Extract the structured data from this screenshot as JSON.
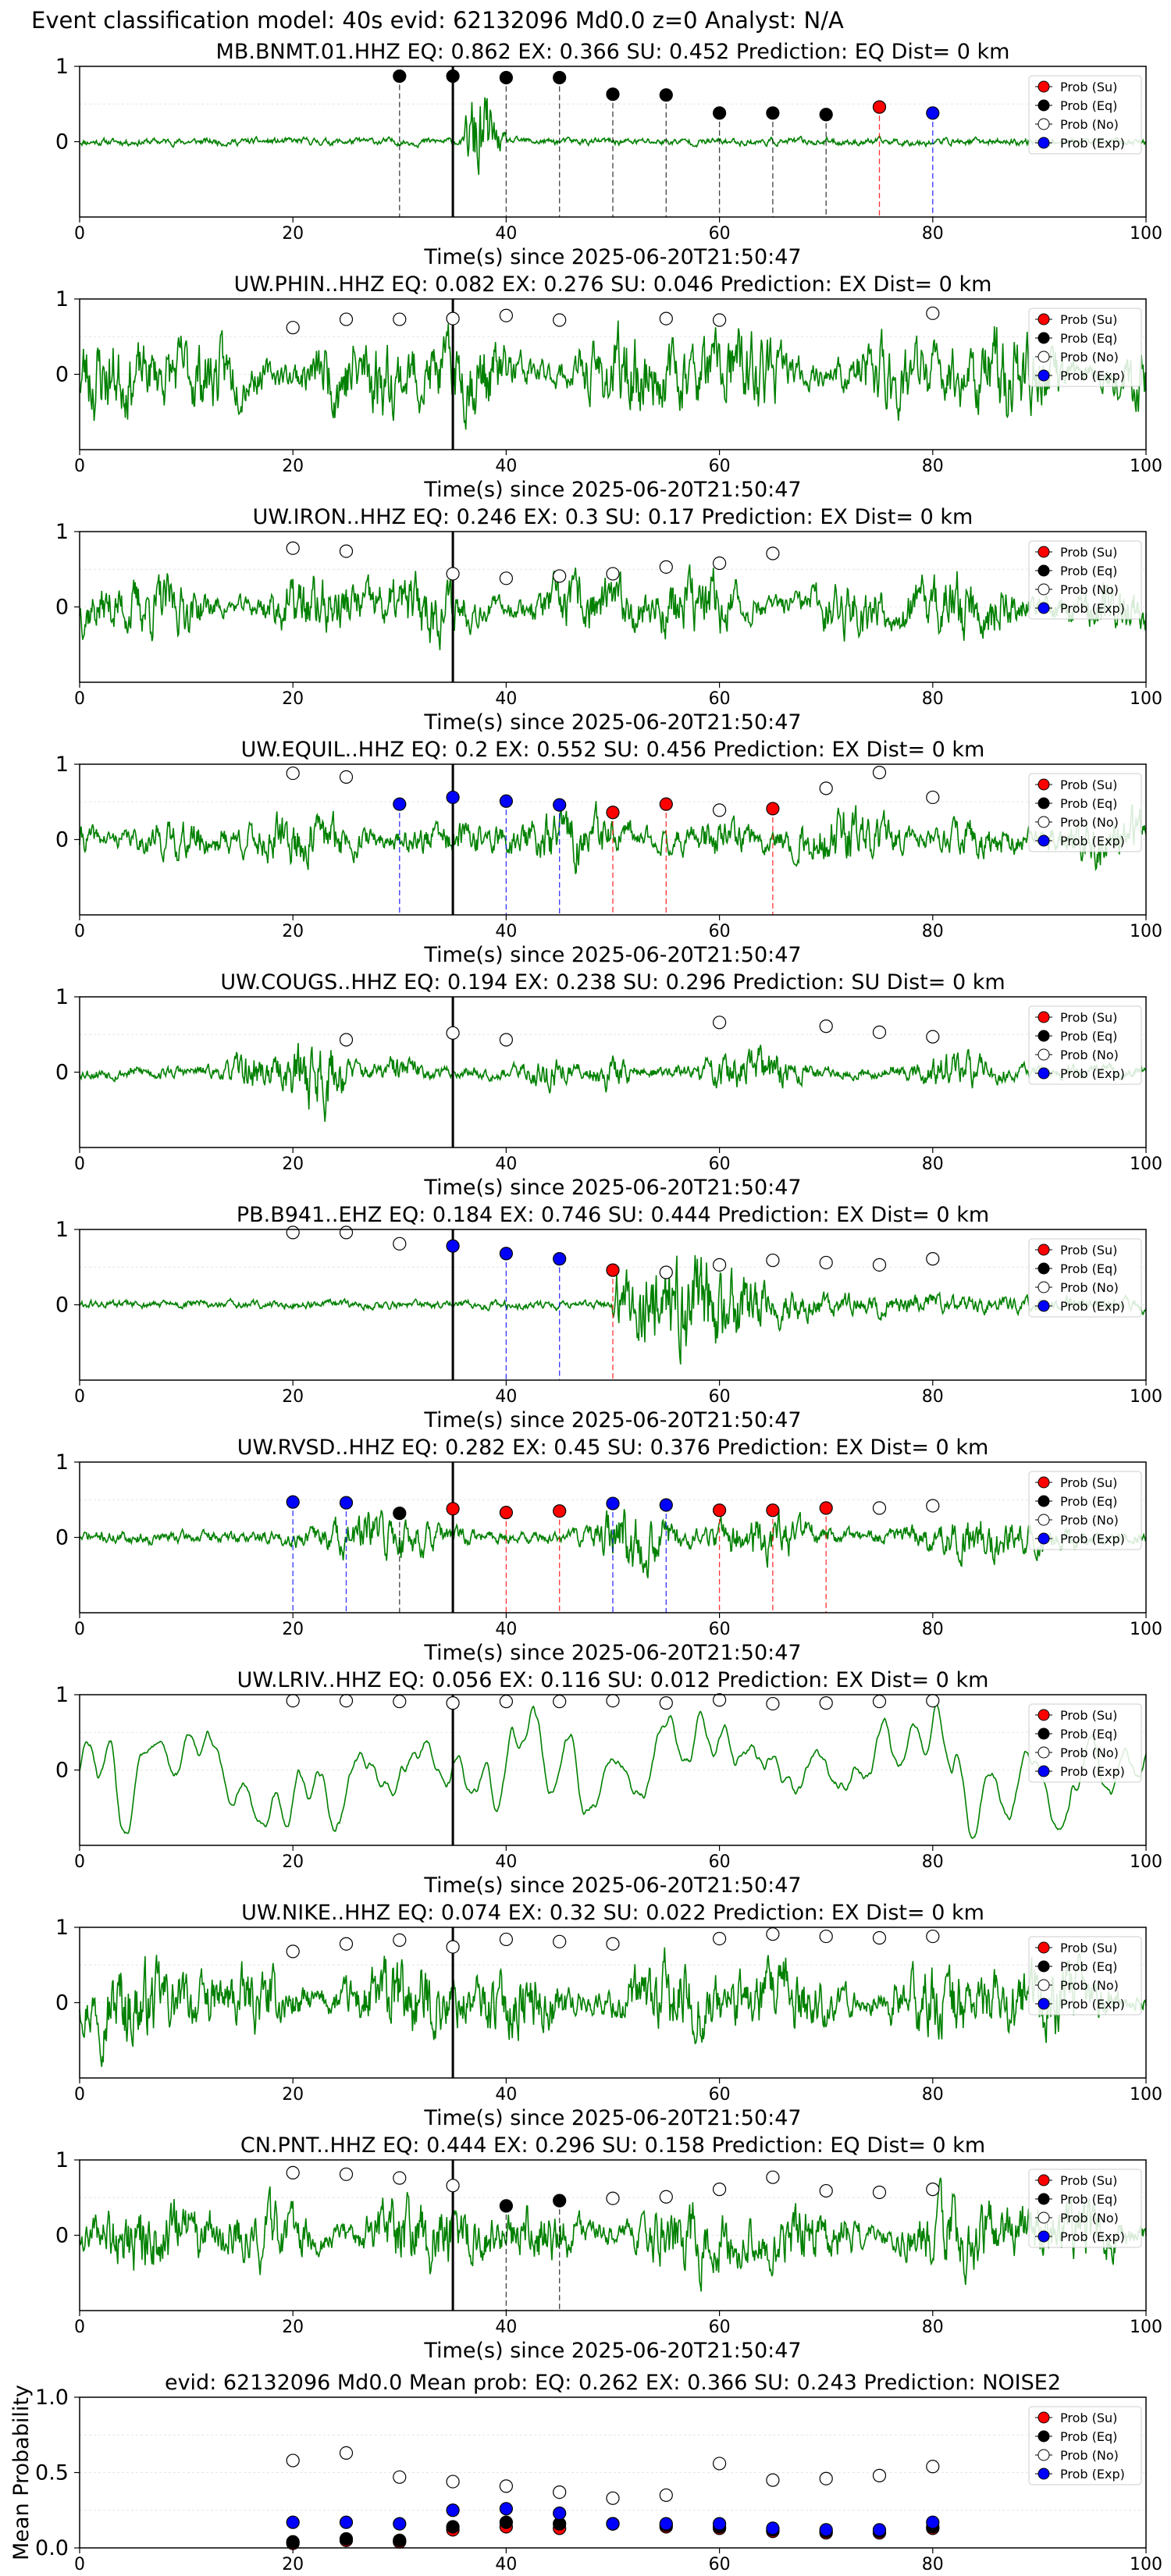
{
  "figure": {
    "suptitle": "Event classification model: 40s evid: 62132096 Md0.0 z=0 Analyst: N/A"
  },
  "legend": {
    "entries": [
      {
        "label": "Prob (Su)",
        "color": "#ff0000"
      },
      {
        "label": "Prob (Eq)",
        "color": "#000000"
      },
      {
        "label": "Prob (No)",
        "color": "#ffffff"
      },
      {
        "label": "Prob (Exp)",
        "color": "#0000ff"
      }
    ]
  },
  "chart_data": [
    {
      "type": "scatter",
      "title": "MB.BNMT.01.HHZ   EQ: 0.862  EX: 0.366  SU: 0.452   Prediction: EQ    Dist= 0 km",
      "xlabel": "Time(s) since 2025-06-20T21:50:47",
      "xlim": [
        0,
        100
      ],
      "ylim": [
        -1,
        1
      ],
      "xticks": [
        "0",
        "20",
        "40",
        "60",
        "80",
        "100"
      ],
      "yticks": [
        "0",
        "1"
      ],
      "waveform": {
        "color": "#008000",
        "amp": 0.07,
        "style": "quiet_burst",
        "seed": 11
      },
      "event_marker_x": 35,
      "points": [
        {
          "t": 30,
          "p": 0.87,
          "class": "Eq"
        },
        {
          "t": 35,
          "p": 0.87,
          "class": "Eq"
        },
        {
          "t": 40,
          "p": 0.85,
          "class": "Eq"
        },
        {
          "t": 45,
          "p": 0.85,
          "class": "Eq"
        },
        {
          "t": 50,
          "p": 0.63,
          "class": "Eq"
        },
        {
          "t": 55,
          "p": 0.62,
          "class": "Eq"
        },
        {
          "t": 60,
          "p": 0.38,
          "class": "Eq"
        },
        {
          "t": 65,
          "p": 0.38,
          "class": "Eq"
        },
        {
          "t": 70,
          "p": 0.36,
          "class": "Eq"
        },
        {
          "t": 75,
          "p": 0.46,
          "class": "Su"
        },
        {
          "t": 80,
          "p": 0.38,
          "class": "Exp"
        }
      ]
    },
    {
      "type": "scatter",
      "title": "UW.PHIN..HHZ   EQ: 0.082  EX: 0.276  SU: 0.046   Prediction: EX    Dist= 0 km",
      "xlabel": "Time(s) since 2025-06-20T21:50:47",
      "xlim": [
        0,
        100
      ],
      "ylim": [
        -1,
        1
      ],
      "xticks": [
        "0",
        "20",
        "40",
        "60",
        "80",
        "100"
      ],
      "yticks": [
        "0",
        "1"
      ],
      "waveform": {
        "color": "#008000",
        "amp": 0.6,
        "style": "noise",
        "seed": 23
      },
      "event_marker_x": 35,
      "points": [
        {
          "t": 20,
          "p": 0.62,
          "class": "No"
        },
        {
          "t": 25,
          "p": 0.73,
          "class": "No"
        },
        {
          "t": 30,
          "p": 0.73,
          "class": "No"
        },
        {
          "t": 35,
          "p": 0.74,
          "class": "No"
        },
        {
          "t": 40,
          "p": 0.78,
          "class": "No"
        },
        {
          "t": 45,
          "p": 0.72,
          "class": "No"
        },
        {
          "t": 55,
          "p": 0.74,
          "class": "No"
        },
        {
          "t": 60,
          "p": 0.72,
          "class": "No"
        },
        {
          "t": 80,
          "p": 0.81,
          "class": "No"
        }
      ]
    },
    {
      "type": "scatter",
      "title": "UW.IRON..HHZ   EQ: 0.246  EX: 0.3  SU: 0.17   Prediction: EX    Dist= 0 km",
      "xlabel": "Time(s) since 2025-06-20T21:50:47",
      "xlim": [
        0,
        100
      ],
      "ylim": [
        -1,
        1
      ],
      "xticks": [
        "0",
        "20",
        "40",
        "60",
        "80",
        "100"
      ],
      "yticks": [
        "0",
        "1"
      ],
      "waveform": {
        "color": "#008000",
        "amp": 0.45,
        "style": "noise",
        "seed": 37
      },
      "event_marker_x": 35,
      "points": [
        {
          "t": 20,
          "p": 0.78,
          "class": "No"
        },
        {
          "t": 25,
          "p": 0.74,
          "class": "No"
        },
        {
          "t": 35,
          "p": 0.44,
          "class": "No"
        },
        {
          "t": 40,
          "p": 0.38,
          "class": "No"
        },
        {
          "t": 45,
          "p": 0.41,
          "class": "No"
        },
        {
          "t": 50,
          "p": 0.44,
          "class": "No"
        },
        {
          "t": 55,
          "p": 0.53,
          "class": "No"
        },
        {
          "t": 60,
          "p": 0.58,
          "class": "No"
        },
        {
          "t": 65,
          "p": 0.71,
          "class": "No"
        }
      ]
    },
    {
      "type": "scatter",
      "title": "UW.EQUIL..HHZ   EQ: 0.2  EX: 0.552  SU: 0.456   Prediction: EX    Dist= 0 km",
      "xlabel": "Time(s) since 2025-06-20T21:50:47",
      "xlim": [
        0,
        100
      ],
      "ylim": [
        -1,
        1
      ],
      "xticks": [
        "0",
        "20",
        "40",
        "60",
        "80",
        "100"
      ],
      "yticks": [
        "0",
        "1"
      ],
      "waveform": {
        "color": "#008000",
        "amp": 0.35,
        "style": "noise",
        "seed": 41
      },
      "event_marker_x": 35,
      "points": [
        {
          "t": 20,
          "p": 0.88,
          "class": "No"
        },
        {
          "t": 25,
          "p": 0.83,
          "class": "No"
        },
        {
          "t": 30,
          "p": 0.47,
          "class": "Exp"
        },
        {
          "t": 35,
          "p": 0.56,
          "class": "Exp"
        },
        {
          "t": 40,
          "p": 0.51,
          "class": "Exp"
        },
        {
          "t": 45,
          "p": 0.46,
          "class": "Exp"
        },
        {
          "t": 50,
          "p": 0.36,
          "class": "Su"
        },
        {
          "t": 55,
          "p": 0.47,
          "class": "Su"
        },
        {
          "t": 60,
          "p": 0.39,
          "class": "No"
        },
        {
          "t": 65,
          "p": 0.41,
          "class": "Su"
        },
        {
          "t": 70,
          "p": 0.68,
          "class": "No"
        },
        {
          "t": 75,
          "p": 0.89,
          "class": "No"
        },
        {
          "t": 80,
          "p": 0.56,
          "class": "No"
        }
      ]
    },
    {
      "type": "scatter",
      "title": "UW.COUGS..HHZ   EQ: 0.194  EX: 0.238  SU: 0.296   Prediction: SU    Dist= 0 km",
      "xlabel": "Time(s) since 2025-06-20T21:50:47",
      "xlim": [
        0,
        100
      ],
      "ylim": [
        -1,
        1
      ],
      "xticks": [
        "0",
        "20",
        "40",
        "60",
        "80",
        "100"
      ],
      "yticks": [
        "0",
        "1"
      ],
      "waveform": {
        "color": "#008000",
        "amp": 0.12,
        "style": "bursts",
        "seed": 53
      },
      "event_marker_x": 35,
      "points": [
        {
          "t": 25,
          "p": 0.43,
          "class": "No"
        },
        {
          "t": 35,
          "p": 0.52,
          "class": "No"
        },
        {
          "t": 40,
          "p": 0.43,
          "class": "No"
        },
        {
          "t": 60,
          "p": 0.66,
          "class": "No"
        },
        {
          "t": 70,
          "p": 0.61,
          "class": "No"
        },
        {
          "t": 75,
          "p": 0.53,
          "class": "No"
        },
        {
          "t": 80,
          "p": 0.47,
          "class": "No"
        }
      ]
    },
    {
      "type": "scatter",
      "title": "PB.B941..EHZ   EQ: 0.184  EX: 0.746  SU: 0.444   Prediction: EX    Dist= 0 km",
      "xlabel": "Time(s) since 2025-06-20T21:50:47",
      "xlim": [
        0,
        100
      ],
      "ylim": [
        -1,
        1
      ],
      "xticks": [
        "0",
        "20",
        "40",
        "60",
        "80",
        "100"
      ],
      "yticks": [
        "0",
        "1"
      ],
      "waveform": {
        "color": "#008000",
        "amp": 0.08,
        "style": "late_burst",
        "seed": 61
      },
      "event_marker_x": 35,
      "points": [
        {
          "t": 20,
          "p": 0.96,
          "class": "No"
        },
        {
          "t": 25,
          "p": 0.96,
          "class": "No"
        },
        {
          "t": 30,
          "p": 0.81,
          "class": "No"
        },
        {
          "t": 35,
          "p": 0.78,
          "class": "Exp"
        },
        {
          "t": 40,
          "p": 0.68,
          "class": "Exp"
        },
        {
          "t": 45,
          "p": 0.61,
          "class": "Exp"
        },
        {
          "t": 50,
          "p": 0.46,
          "class": "Su"
        },
        {
          "t": 55,
          "p": 0.43,
          "class": "No"
        },
        {
          "t": 60,
          "p": 0.53,
          "class": "No"
        },
        {
          "t": 65,
          "p": 0.59,
          "class": "No"
        },
        {
          "t": 70,
          "p": 0.56,
          "class": "No"
        },
        {
          "t": 75,
          "p": 0.53,
          "class": "No"
        },
        {
          "t": 80,
          "p": 0.61,
          "class": "No"
        }
      ]
    },
    {
      "type": "scatter",
      "title": "UW.RVSD..HHZ   EQ: 0.282  EX: 0.45  SU: 0.376   Prediction: EX    Dist= 0 km",
      "xlabel": "Time(s) since 2025-06-20T21:50:47",
      "xlim": [
        0,
        100
      ],
      "ylim": [
        -1,
        1
      ],
      "xticks": [
        "0",
        "20",
        "40",
        "60",
        "80",
        "100"
      ],
      "yticks": [
        "0",
        "1"
      ],
      "waveform": {
        "color": "#008000",
        "amp": 0.12,
        "style": "mid_burst",
        "seed": 71
      },
      "event_marker_x": 35,
      "points": [
        {
          "t": 20,
          "p": 0.47,
          "class": "Exp"
        },
        {
          "t": 25,
          "p": 0.46,
          "class": "Exp"
        },
        {
          "t": 30,
          "p": 0.32,
          "class": "Eq"
        },
        {
          "t": 35,
          "p": 0.38,
          "class": "Su"
        },
        {
          "t": 40,
          "p": 0.33,
          "class": "Su"
        },
        {
          "t": 45,
          "p": 0.35,
          "class": "Su"
        },
        {
          "t": 50,
          "p": 0.45,
          "class": "Exp"
        },
        {
          "t": 55,
          "p": 0.43,
          "class": "Exp"
        },
        {
          "t": 60,
          "p": 0.36,
          "class": "Su"
        },
        {
          "t": 65,
          "p": 0.36,
          "class": "Su"
        },
        {
          "t": 70,
          "p": 0.39,
          "class": "Su"
        },
        {
          "t": 75,
          "p": 0.39,
          "class": "No"
        },
        {
          "t": 80,
          "p": 0.42,
          "class": "No"
        }
      ]
    },
    {
      "type": "scatter",
      "title": "UW.LRIV..HHZ   EQ: 0.056  EX: 0.116  SU: 0.012   Prediction: EX    Dist= 0 km",
      "xlabel": "Time(s) since 2025-06-20T21:50:47",
      "xlim": [
        0,
        100
      ],
      "ylim": [
        -1,
        1
      ],
      "xticks": [
        "0",
        "20",
        "40",
        "60",
        "80",
        "100"
      ],
      "yticks": [
        "0",
        "1"
      ],
      "waveform": {
        "color": "#008000",
        "amp": 0.7,
        "style": "smooth",
        "seed": 83
      },
      "event_marker_x": 35,
      "points": [
        {
          "t": 20,
          "p": 0.92,
          "class": "No"
        },
        {
          "t": 25,
          "p": 0.92,
          "class": "No"
        },
        {
          "t": 30,
          "p": 0.91,
          "class": "No"
        },
        {
          "t": 35,
          "p": 0.89,
          "class": "No"
        },
        {
          "t": 40,
          "p": 0.91,
          "class": "No"
        },
        {
          "t": 45,
          "p": 0.91,
          "class": "No"
        },
        {
          "t": 50,
          "p": 0.92,
          "class": "No"
        },
        {
          "t": 55,
          "p": 0.89,
          "class": "No"
        },
        {
          "t": 60,
          "p": 0.93,
          "class": "No"
        },
        {
          "t": 65,
          "p": 0.88,
          "class": "No"
        },
        {
          "t": 70,
          "p": 0.89,
          "class": "No"
        },
        {
          "t": 75,
          "p": 0.91,
          "class": "No"
        },
        {
          "t": 80,
          "p": 0.92,
          "class": "No"
        }
      ]
    },
    {
      "type": "scatter",
      "title": "UW.NIKE..HHZ   EQ: 0.074  EX: 0.32  SU: 0.022   Prediction: EX    Dist= 0 km",
      "xlabel": "Time(s) since 2025-06-20T21:50:47",
      "xlim": [
        0,
        100
      ],
      "ylim": [
        -1,
        1
      ],
      "xticks": [
        "0",
        "20",
        "40",
        "60",
        "80",
        "100"
      ],
      "yticks": [
        "0",
        "1"
      ],
      "waveform": {
        "color": "#008000",
        "amp": 0.55,
        "style": "noise",
        "seed": 97
      },
      "event_marker_x": 35,
      "points": [
        {
          "t": 20,
          "p": 0.68,
          "class": "No"
        },
        {
          "t": 25,
          "p": 0.78,
          "class": "No"
        },
        {
          "t": 30,
          "p": 0.83,
          "class": "No"
        },
        {
          "t": 35,
          "p": 0.74,
          "class": "No"
        },
        {
          "t": 40,
          "p": 0.84,
          "class": "No"
        },
        {
          "t": 45,
          "p": 0.81,
          "class": "No"
        },
        {
          "t": 50,
          "p": 0.78,
          "class": "No"
        },
        {
          "t": 60,
          "p": 0.85,
          "class": "No"
        },
        {
          "t": 65,
          "p": 0.91,
          "class": "No"
        },
        {
          "t": 70,
          "p": 0.88,
          "class": "No"
        },
        {
          "t": 75,
          "p": 0.86,
          "class": "No"
        },
        {
          "t": 80,
          "p": 0.88,
          "class": "No"
        }
      ]
    },
    {
      "type": "scatter",
      "title": "CN.PNT..HHZ   EQ: 0.444  EX: 0.296  SU: 0.158   Prediction: EQ    Dist= 0 km",
      "xlabel": "Time(s) since 2025-06-20T21:50:47",
      "xlim": [
        0,
        100
      ],
      "ylim": [
        -1,
        1
      ],
      "xticks": [
        "0",
        "20",
        "40",
        "60",
        "80",
        "100"
      ],
      "yticks": [
        "0",
        "1"
      ],
      "waveform": {
        "color": "#008000",
        "amp": 0.5,
        "style": "noise",
        "seed": 109
      },
      "event_marker_x": 35,
      "points": [
        {
          "t": 20,
          "p": 0.83,
          "class": "No"
        },
        {
          "t": 25,
          "p": 0.81,
          "class": "No"
        },
        {
          "t": 30,
          "p": 0.76,
          "class": "No"
        },
        {
          "t": 35,
          "p": 0.66,
          "class": "No"
        },
        {
          "t": 40,
          "p": 0.39,
          "class": "Eq"
        },
        {
          "t": 45,
          "p": 0.46,
          "class": "Eq"
        },
        {
          "t": 50,
          "p": 0.49,
          "class": "No"
        },
        {
          "t": 55,
          "p": 0.51,
          "class": "No"
        },
        {
          "t": 60,
          "p": 0.61,
          "class": "No"
        },
        {
          "t": 65,
          "p": 0.77,
          "class": "No"
        },
        {
          "t": 70,
          "p": 0.59,
          "class": "No"
        },
        {
          "t": 75,
          "p": 0.57,
          "class": "No"
        },
        {
          "t": 80,
          "p": 0.61,
          "class": "No"
        }
      ]
    },
    {
      "type": "scatter",
      "title": "evid: 62132096  Md0.0   Mean prob:   EQ: 0.262  EX: 0.366  SU: 0.243   Prediction: NOISE2",
      "xlabel": "",
      "ylabel": "Mean Probability",
      "xlim": [
        0,
        100
      ],
      "ylim": [
        0,
        1
      ],
      "xticks": [
        "0",
        "20",
        "40",
        "60",
        "80",
        "100"
      ],
      "yticks": [
        "0.0",
        "0.5",
        "1.0"
      ],
      "series": [
        {
          "name": "Prob (Su)",
          "color": "#ff0000",
          "x": [
            20,
            25,
            30,
            35,
            40,
            45,
            50,
            55,
            60,
            65,
            70,
            75,
            80
          ],
          "y": [
            0.03,
            0.05,
            0.04,
            0.12,
            0.14,
            0.13,
            0.16,
            0.14,
            0.13,
            0.11,
            0.1,
            0.1,
            0.13
          ]
        },
        {
          "name": "Prob (Eq)",
          "color": "#000000",
          "x": [
            20,
            25,
            30,
            35,
            40,
            45,
            50,
            55,
            60,
            65,
            70,
            75,
            80
          ],
          "y": [
            0.04,
            0.06,
            0.05,
            0.14,
            0.17,
            0.16,
            0.16,
            0.15,
            0.14,
            0.12,
            0.11,
            0.11,
            0.14
          ]
        },
        {
          "name": "Prob (No)",
          "color": "#ffffff",
          "x": [
            20,
            25,
            30,
            35,
            40,
            45,
            50,
            55,
            60,
            65,
            70,
            75,
            80
          ],
          "y": [
            0.58,
            0.63,
            0.47,
            0.44,
            0.41,
            0.37,
            0.33,
            0.35,
            0.56,
            0.45,
            0.46,
            0.48,
            0.54
          ]
        },
        {
          "name": "Prob (Exp)",
          "color": "#0000ff",
          "x": [
            20,
            25,
            30,
            35,
            40,
            45,
            50,
            55,
            60,
            65,
            70,
            75,
            80
          ],
          "y": [
            0.17,
            0.17,
            0.16,
            0.25,
            0.26,
            0.23,
            0.16,
            0.16,
            0.16,
            0.13,
            0.12,
            0.12,
            0.17
          ]
        }
      ]
    }
  ]
}
